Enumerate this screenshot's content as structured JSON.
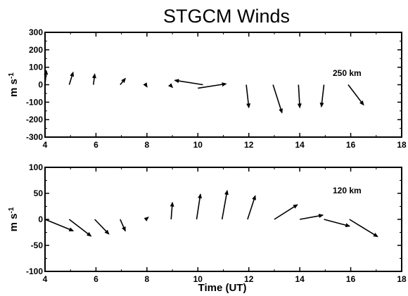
{
  "title": "STGCM Winds",
  "xlabel": "Time (UT)",
  "chart_data": [
    {
      "type": "quiver",
      "annotation": "250 km",
      "ylabel": "m s-1",
      "xlim": [
        4,
        18
      ],
      "ylim": [
        -300,
        300
      ],
      "xticks": [
        4,
        6,
        8,
        10,
        12,
        14,
        16,
        18
      ],
      "yticks": [
        -300,
        -200,
        -100,
        0,
        100,
        200,
        300
      ],
      "tick_labels_x": [
        "4",
        "6",
        "8",
        "10",
        "12",
        "14",
        "16",
        "18"
      ],
      "tick_labels_y": [
        "-300",
        "-200",
        "-100",
        "0",
        "100",
        "200",
        "300"
      ],
      "arrows": [
        {
          "x": 4.0,
          "y": 0,
          "dx": 0.05,
          "dy": 80
        },
        {
          "x": 4.95,
          "y": 0,
          "dx": 0.15,
          "dy": 70
        },
        {
          "x": 5.9,
          "y": 0,
          "dx": 0.05,
          "dy": 60
        },
        {
          "x": 6.95,
          "y": 0,
          "dx": 0.2,
          "dy": 35
        },
        {
          "x": 7.95,
          "y": 0,
          "dx": 0.05,
          "dy": -12
        },
        {
          "x": 8.9,
          "y": 0,
          "dx": 0.1,
          "dy": -15
        },
        {
          "x": 10.2,
          "y": 0,
          "dx": -1.1,
          "dy": 25
        },
        {
          "x": 10.0,
          "y": -20,
          "dx": 1.1,
          "dy": 25
        },
        {
          "x": 11.9,
          "y": 0,
          "dx": 0.1,
          "dy": -130
        },
        {
          "x": 12.95,
          "y": 0,
          "dx": 0.35,
          "dy": -160
        },
        {
          "x": 13.95,
          "y": 0,
          "dx": 0.05,
          "dy": -130
        },
        {
          "x": 14.95,
          "y": 0,
          "dx": -0.1,
          "dy": -125
        },
        {
          "x": 15.9,
          "y": 0,
          "dx": 0.6,
          "dy": -115
        }
      ]
    },
    {
      "type": "quiver",
      "annotation": "120 km",
      "ylabel": "m s-1",
      "xlim": [
        4,
        18
      ],
      "ylim": [
        -100,
        100
      ],
      "xticks": [
        4,
        6,
        8,
        10,
        12,
        14,
        16,
        18
      ],
      "yticks": [
        -100,
        -50,
        0,
        50,
        100
      ],
      "tick_labels_x": [
        "4",
        "6",
        "8",
        "10",
        "12",
        "14",
        "16",
        "18"
      ],
      "tick_labels_y": [
        "-100",
        "-50",
        "0",
        "50",
        "100"
      ],
      "arrows": [
        {
          "x": 4.0,
          "y": 0,
          "dx": 1.1,
          "dy": -22
        },
        {
          "x": 4.95,
          "y": 0,
          "dx": 0.85,
          "dy": -32
        },
        {
          "x": 5.95,
          "y": 0,
          "dx": 0.55,
          "dy": -28
        },
        {
          "x": 6.95,
          "y": 0,
          "dx": 0.2,
          "dy": -22
        },
        {
          "x": 7.95,
          "y": 0,
          "dx": 0.1,
          "dy": 4
        },
        {
          "x": 8.95,
          "y": 0,
          "dx": 0.05,
          "dy": 32
        },
        {
          "x": 9.95,
          "y": 0,
          "dx": 0.15,
          "dy": 48
        },
        {
          "x": 10.95,
          "y": 0,
          "dx": 0.2,
          "dy": 55
        },
        {
          "x": 11.95,
          "y": 0,
          "dx": 0.3,
          "dy": 45
        },
        {
          "x": 13.0,
          "y": 0,
          "dx": 0.9,
          "dy": 28
        },
        {
          "x": 14.0,
          "y": 0,
          "dx": 0.9,
          "dy": 8
        },
        {
          "x": 14.95,
          "y": 0,
          "dx": 1.0,
          "dy": -13
        },
        {
          "x": 15.95,
          "y": 0,
          "dx": 1.1,
          "dy": -33
        }
      ]
    }
  ]
}
